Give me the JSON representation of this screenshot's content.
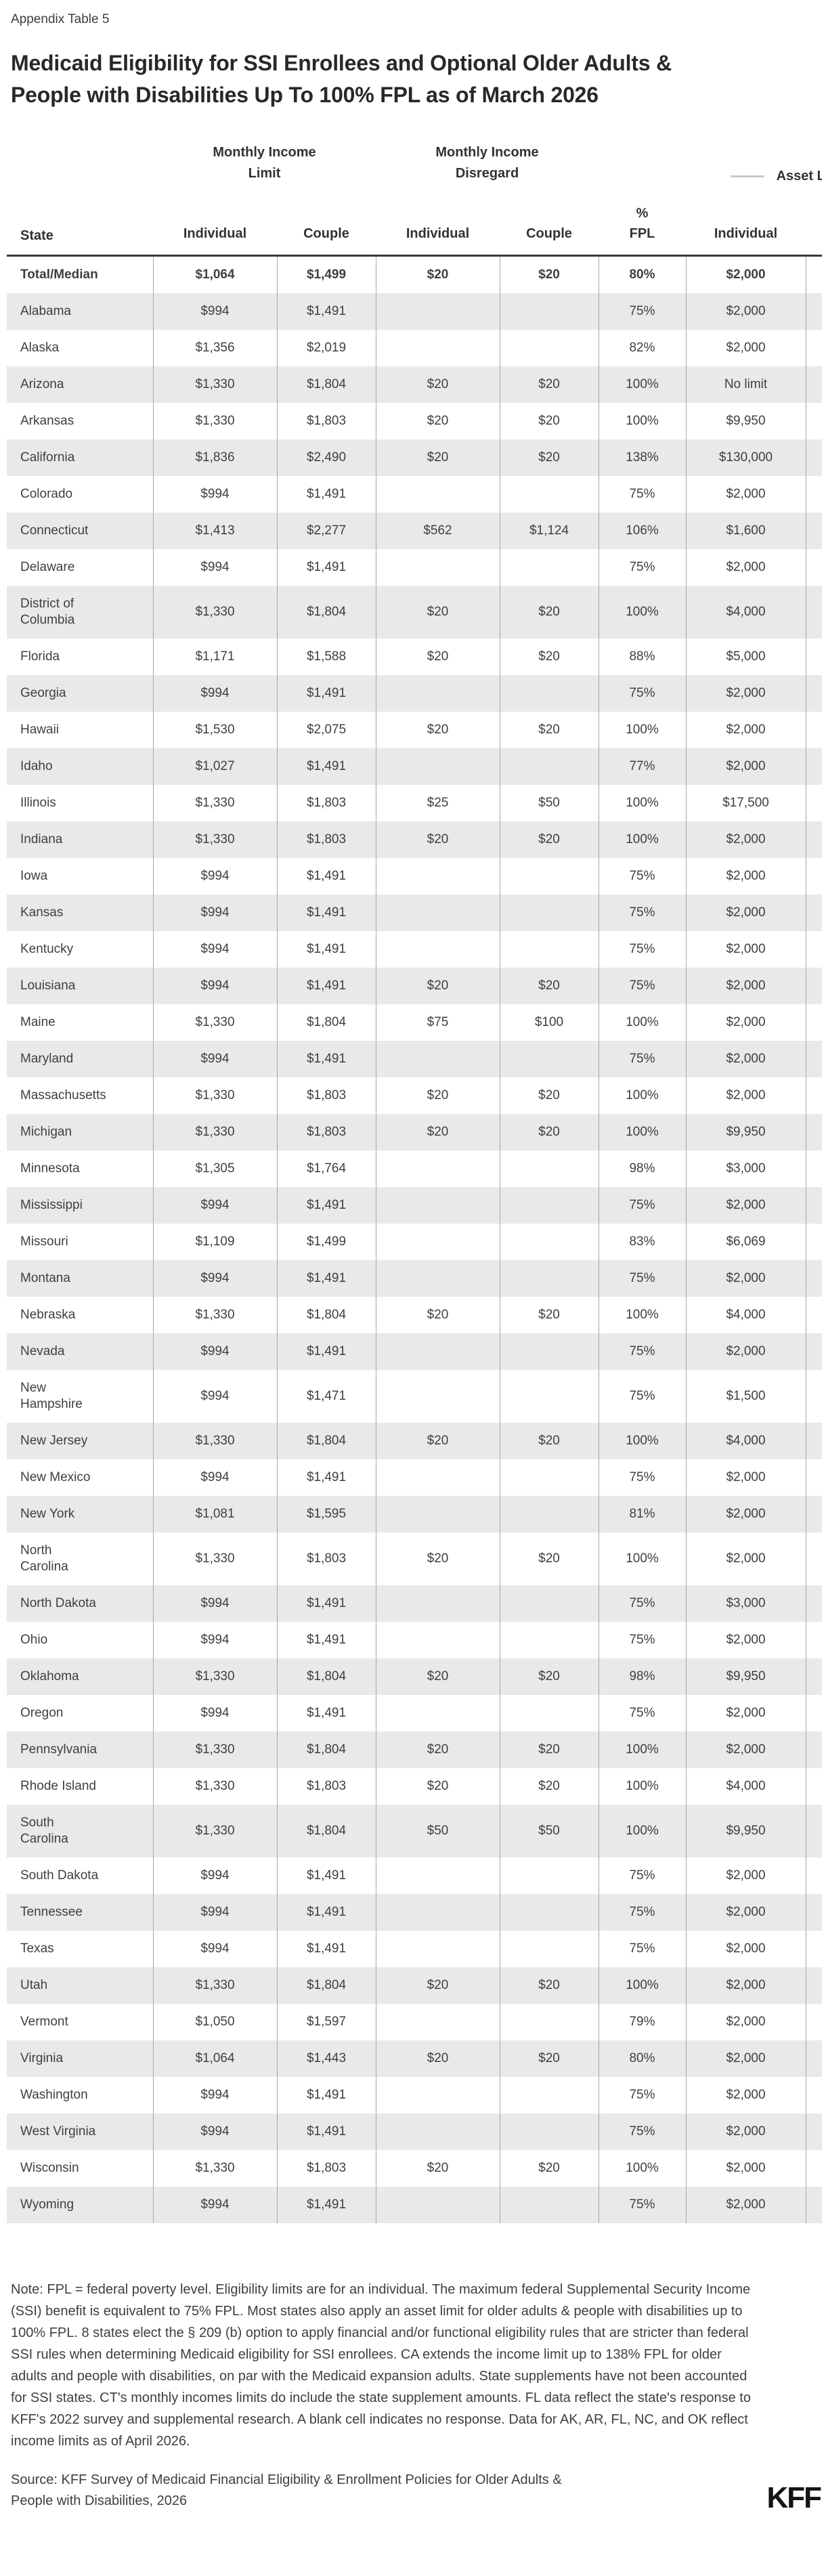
{
  "page": {
    "appendix_label": "Appendix Table 5",
    "title": "Medicaid Eligibility for SSI Enrollees and Optional Older Adults & People with Disabilities Up To 100% FPL as of March 2026",
    "note": "Note: FPL = federal poverty level. Eligibility limits are for an individual. The maximum federal Supplemental Security Income (SSI) benefit is equivalent to 75% FPL. Most states also apply an asset limit for older adults & people with disabilities up to 100% FPL. 8 states elect the § 209 (b) option to apply financial and/or functional eligibility rules that are stricter than federal SSI rules when determining Medicaid eligibility for SSI enrollees. CA extends the income limit up to 138% FPL for older adults and people with disabilities, on par with the Medicaid expansion adults. State supplements have not been accounted for SSI states. CT's monthly incomes limits do include the state supplement amounts. FL data reflect the state's response to KFF's 2022 survey and supplemental research. A blank cell indicates no response. Data for AK, AR, FL, NC, and OK reflect income limits as of April 2026.",
    "source": "Source: KFF Survey of Medicaid Financial Eligibility & Enrollment Policies for Older Adults & People with Disabilities, 2026",
    "logo_text": "KFF"
  },
  "colors": {
    "stripe": "#e9e9e9",
    "cell_border": "#a6a6a6",
    "header_rule": "#3a3a3a",
    "dash": "#c9c9c9",
    "text": "#3d4043"
  },
  "table": {
    "group_headers": [
      {
        "label": "Monthly Income Limit",
        "span": 2
      },
      {
        "label": "Monthly Income Disregard",
        "span": 2
      },
      {
        "label": "Asset Limit",
        "span": 2
      }
    ],
    "columns": [
      "State",
      "Individual",
      "Couple",
      "Individual",
      "Couple",
      "%\nFPL",
      "Individual",
      ""
    ],
    "rows": [
      {
        "state": "Total/Median",
        "bold": true,
        "values": [
          "$1,064",
          "$1,499",
          "$20",
          "$20",
          "80%",
          "$2,000"
        ]
      },
      {
        "state": "Alabama",
        "values": [
          "$994",
          "$1,491",
          "",
          "",
          "75%",
          "$2,000"
        ]
      },
      {
        "state": "Alaska",
        "values": [
          "$1,356",
          "$2,019",
          "",
          "",
          "82%",
          "$2,000"
        ]
      },
      {
        "state": "Arizona",
        "values": [
          "$1,330",
          "$1,804",
          "$20",
          "$20",
          "100%",
          "No limit"
        ]
      },
      {
        "state": "Arkansas",
        "values": [
          "$1,330",
          "$1,803",
          "$20",
          "$20",
          "100%",
          "$9,950"
        ]
      },
      {
        "state": "California",
        "values": [
          "$1,836",
          "$2,490",
          "$20",
          "$20",
          "138%",
          "$130,000"
        ]
      },
      {
        "state": "Colorado",
        "values": [
          "$994",
          "$1,491",
          "",
          "",
          "75%",
          "$2,000"
        ]
      },
      {
        "state": "Connecticut",
        "values": [
          "$1,413",
          "$2,277",
          "$562",
          "$1,124",
          "106%",
          "$1,600"
        ]
      },
      {
        "state": "Delaware",
        "values": [
          "$994",
          "$1,491",
          "",
          "",
          "75%",
          "$2,000"
        ]
      },
      {
        "state": "District of\nColumbia",
        "values": [
          "$1,330",
          "$1,804",
          "$20",
          "$20",
          "100%",
          "$4,000"
        ]
      },
      {
        "state": "Florida",
        "values": [
          "$1,171",
          "$1,588",
          "$20",
          "$20",
          "88%",
          "$5,000"
        ]
      },
      {
        "state": "Georgia",
        "values": [
          "$994",
          "$1,491",
          "",
          "",
          "75%",
          "$2,000"
        ]
      },
      {
        "state": "Hawaii",
        "values": [
          "$1,530",
          "$2,075",
          "$20",
          "$20",
          "100%",
          "$2,000"
        ]
      },
      {
        "state": "Idaho",
        "values": [
          "$1,027",
          "$1,491",
          "",
          "",
          "77%",
          "$2,000"
        ]
      },
      {
        "state": "Illinois",
        "values": [
          "$1,330",
          "$1,803",
          "$25",
          "$50",
          "100%",
          "$17,500"
        ]
      },
      {
        "state": "Indiana",
        "values": [
          "$1,330",
          "$1,803",
          "$20",
          "$20",
          "100%",
          "$2,000"
        ]
      },
      {
        "state": "Iowa",
        "values": [
          "$994",
          "$1,491",
          "",
          "",
          "75%",
          "$2,000"
        ]
      },
      {
        "state": "Kansas",
        "values": [
          "$994",
          "$1,491",
          "",
          "",
          "75%",
          "$2,000"
        ]
      },
      {
        "state": "Kentucky",
        "values": [
          "$994",
          "$1,491",
          "",
          "",
          "75%",
          "$2,000"
        ]
      },
      {
        "state": "Louisiana",
        "values": [
          "$994",
          "$1,491",
          "$20",
          "$20",
          "75%",
          "$2,000"
        ]
      },
      {
        "state": "Maine",
        "values": [
          "$1,330",
          "$1,804",
          "$75",
          "$100",
          "100%",
          "$2,000"
        ]
      },
      {
        "state": "Maryland",
        "values": [
          "$994",
          "$1,491",
          "",
          "",
          "75%",
          "$2,000"
        ]
      },
      {
        "state": "Massachusetts",
        "values": [
          "$1,330",
          "$1,803",
          "$20",
          "$20",
          "100%",
          "$2,000"
        ]
      },
      {
        "state": "Michigan",
        "values": [
          "$1,330",
          "$1,803",
          "$20",
          "$20",
          "100%",
          "$9,950"
        ]
      },
      {
        "state": "Minnesota",
        "values": [
          "$1,305",
          "$1,764",
          "",
          "",
          "98%",
          "$3,000"
        ]
      },
      {
        "state": "Mississippi",
        "values": [
          "$994",
          "$1,491",
          "",
          "",
          "75%",
          "$2,000"
        ]
      },
      {
        "state": "Missouri",
        "values": [
          "$1,109",
          "$1,499",
          "",
          "",
          "83%",
          "$6,069"
        ]
      },
      {
        "state": "Montana",
        "values": [
          "$994",
          "$1,491",
          "",
          "",
          "75%",
          "$2,000"
        ]
      },
      {
        "state": "Nebraska",
        "values": [
          "$1,330",
          "$1,804",
          "$20",
          "$20",
          "100%",
          "$4,000"
        ]
      },
      {
        "state": "Nevada",
        "values": [
          "$994",
          "$1,491",
          "",
          "",
          "75%",
          "$2,000"
        ]
      },
      {
        "state": "New\nHampshire",
        "values": [
          "$994",
          "$1,471",
          "",
          "",
          "75%",
          "$1,500"
        ]
      },
      {
        "state": "New Jersey",
        "values": [
          "$1,330",
          "$1,804",
          "$20",
          "$20",
          "100%",
          "$4,000"
        ]
      },
      {
        "state": "New Mexico",
        "values": [
          "$994",
          "$1,491",
          "",
          "",
          "75%",
          "$2,000"
        ]
      },
      {
        "state": "New York",
        "values": [
          "$1,081",
          "$1,595",
          "",
          "",
          "81%",
          "$2,000"
        ]
      },
      {
        "state": "North\nCarolina",
        "values": [
          "$1,330",
          "$1,803",
          "$20",
          "$20",
          "100%",
          "$2,000"
        ]
      },
      {
        "state": "North Dakota",
        "values": [
          "$994",
          "$1,491",
          "",
          "",
          "75%",
          "$3,000"
        ]
      },
      {
        "state": "Ohio",
        "values": [
          "$994",
          "$1,491",
          "",
          "",
          "75%",
          "$2,000"
        ]
      },
      {
        "state": "Oklahoma",
        "values": [
          "$1,330",
          "$1,804",
          "$20",
          "$20",
          "98%",
          "$9,950"
        ]
      },
      {
        "state": "Oregon",
        "values": [
          "$994",
          "$1,491",
          "",
          "",
          "75%",
          "$2,000"
        ]
      },
      {
        "state": "Pennsylvania",
        "values": [
          "$1,330",
          "$1,804",
          "$20",
          "$20",
          "100%",
          "$2,000"
        ]
      },
      {
        "state": "Rhode Island",
        "values": [
          "$1,330",
          "$1,803",
          "$20",
          "$20",
          "100%",
          "$4,000"
        ]
      },
      {
        "state": "South\nCarolina",
        "values": [
          "$1,330",
          "$1,804",
          "$50",
          "$50",
          "100%",
          "$9,950"
        ]
      },
      {
        "state": "South Dakota",
        "values": [
          "$994",
          "$1,491",
          "",
          "",
          "75%",
          "$2,000"
        ]
      },
      {
        "state": "Tennessee",
        "values": [
          "$994",
          "$1,491",
          "",
          "",
          "75%",
          "$2,000"
        ]
      },
      {
        "state": "Texas",
        "values": [
          "$994",
          "$1,491",
          "",
          "",
          "75%",
          "$2,000"
        ]
      },
      {
        "state": "Utah",
        "values": [
          "$1,330",
          "$1,804",
          "$20",
          "$20",
          "100%",
          "$2,000"
        ]
      },
      {
        "state": "Vermont",
        "values": [
          "$1,050",
          "$1,597",
          "",
          "",
          "79%",
          "$2,000"
        ]
      },
      {
        "state": "Virginia",
        "values": [
          "$1,064",
          "$1,443",
          "$20",
          "$20",
          "80%",
          "$2,000"
        ]
      },
      {
        "state": "Washington",
        "values": [
          "$994",
          "$1,491",
          "",
          "",
          "75%",
          "$2,000"
        ]
      },
      {
        "state": "West Virginia",
        "values": [
          "$994",
          "$1,491",
          "",
          "",
          "75%",
          "$2,000"
        ]
      },
      {
        "state": "Wisconsin",
        "values": [
          "$1,330",
          "$1,803",
          "$20",
          "$20",
          "100%",
          "$2,000"
        ]
      },
      {
        "state": "Wyoming",
        "values": [
          "$994",
          "$1,491",
          "",
          "",
          "75%",
          "$2,000"
        ]
      }
    ]
  }
}
